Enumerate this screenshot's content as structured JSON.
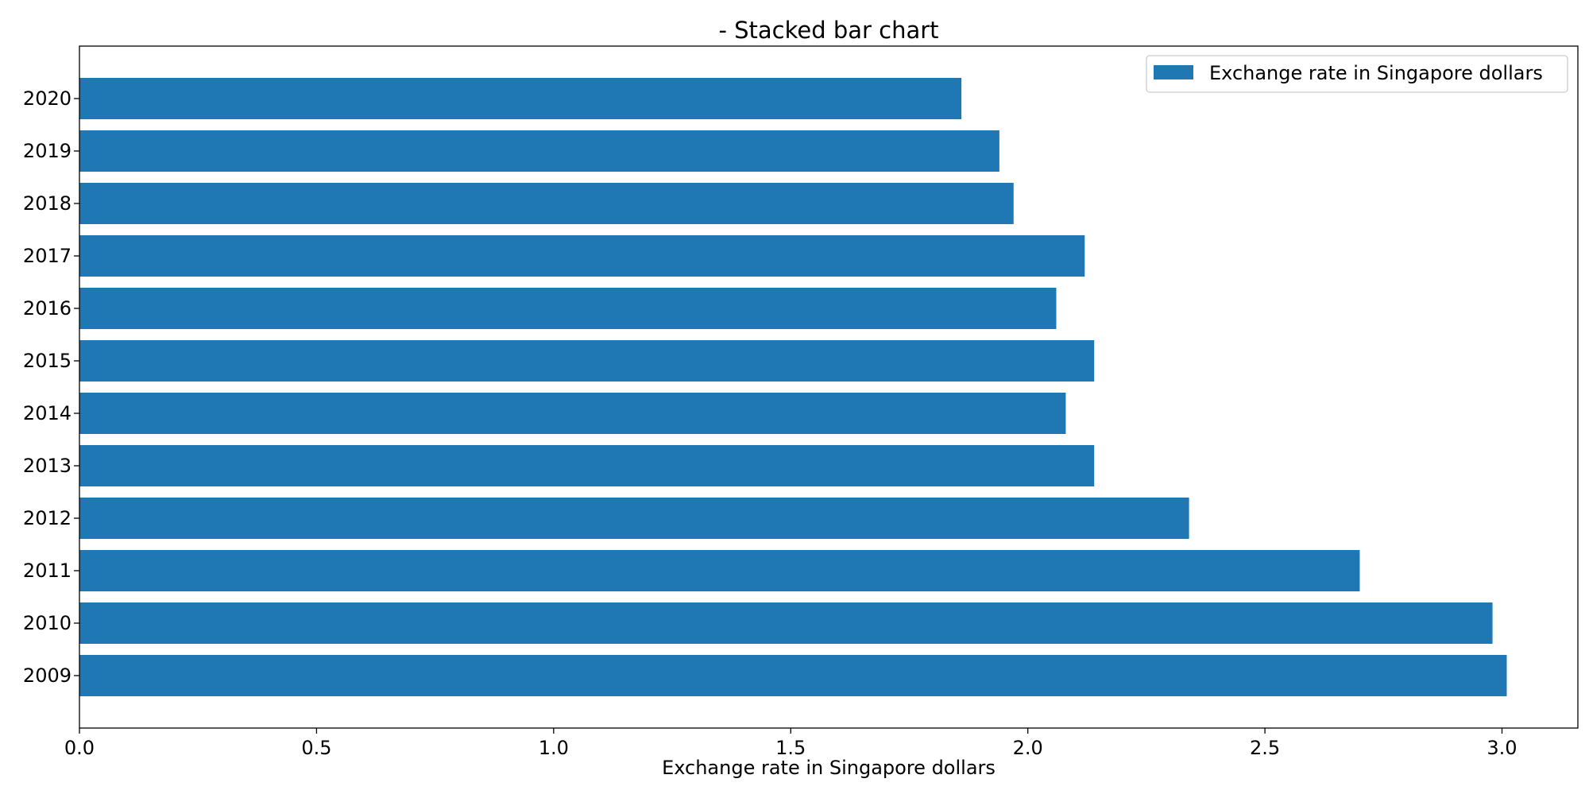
{
  "chart_data": {
    "type": "bar",
    "orientation": "horizontal",
    "title": "- Stacked bar chart",
    "xlabel": "Exchange rate in Singapore dollars",
    "ylabel": "",
    "xlim": [
      0,
      3.16
    ],
    "x_ticks": [
      0.0,
      0.5,
      1.0,
      1.5,
      2.0,
      2.5,
      3.0
    ],
    "x_tick_labels": [
      "0.0",
      "0.5",
      "1.0",
      "1.5",
      "2.0",
      "2.5",
      "3.0"
    ],
    "categories": [
      "2009",
      "2010",
      "2011",
      "2012",
      "2013",
      "2014",
      "2015",
      "2016",
      "2017",
      "2018",
      "2019",
      "2020"
    ],
    "series": [
      {
        "name": "Exchange rate in Singapore dollars",
        "color": "#1f77b4",
        "values": [
          3.01,
          2.98,
          2.7,
          2.34,
          2.14,
          2.08,
          2.14,
          2.06,
          2.12,
          1.97,
          1.94,
          1.86
        ]
      }
    ],
    "grid": false,
    "legend_position": "upper right"
  }
}
